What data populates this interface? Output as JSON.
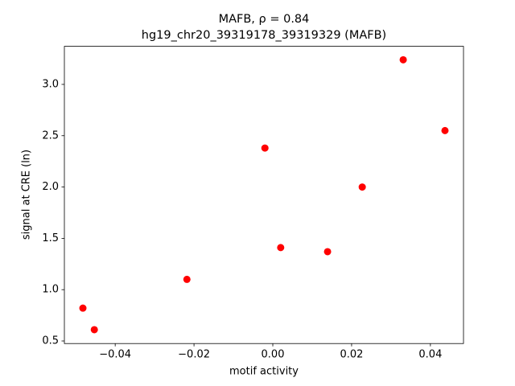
{
  "chart_data": {
    "type": "scatter",
    "title": "MAFB, ρ = 0.84",
    "subtitle": "hg19_chr20_39319178_39319329 (MAFB)",
    "x_label": "motif activity",
    "y_label": "signal at CRE (ln)",
    "color": "#ff0000",
    "x": [
      -0.0482,
      -0.0453,
      -0.0218,
      -0.002,
      0.002,
      0.0139,
      0.0227,
      0.0331,
      0.0437
    ],
    "values": [
      0.82,
      0.61,
      1.1,
      2.38,
      1.41,
      1.37,
      2.0,
      3.24,
      2.55
    ],
    "xlim": [
      -0.0529,
      0.0484
    ],
    "ylim": [
      0.475,
      3.371
    ],
    "xticks": [
      {
        "value": -0.04,
        "label": "−0.04"
      },
      {
        "value": -0.02,
        "label": "−0.02"
      },
      {
        "value": 0,
        "label": "0.00"
      },
      0.02,
      0.04
    ],
    "yticks": [
      0.5,
      {
        "value": 1,
        "label": "1.0"
      },
      1.5,
      {
        "value": 2,
        "label": "2.0"
      },
      2.5,
      {
        "value": 3,
        "label": "3.0"
      }
    ]
  }
}
